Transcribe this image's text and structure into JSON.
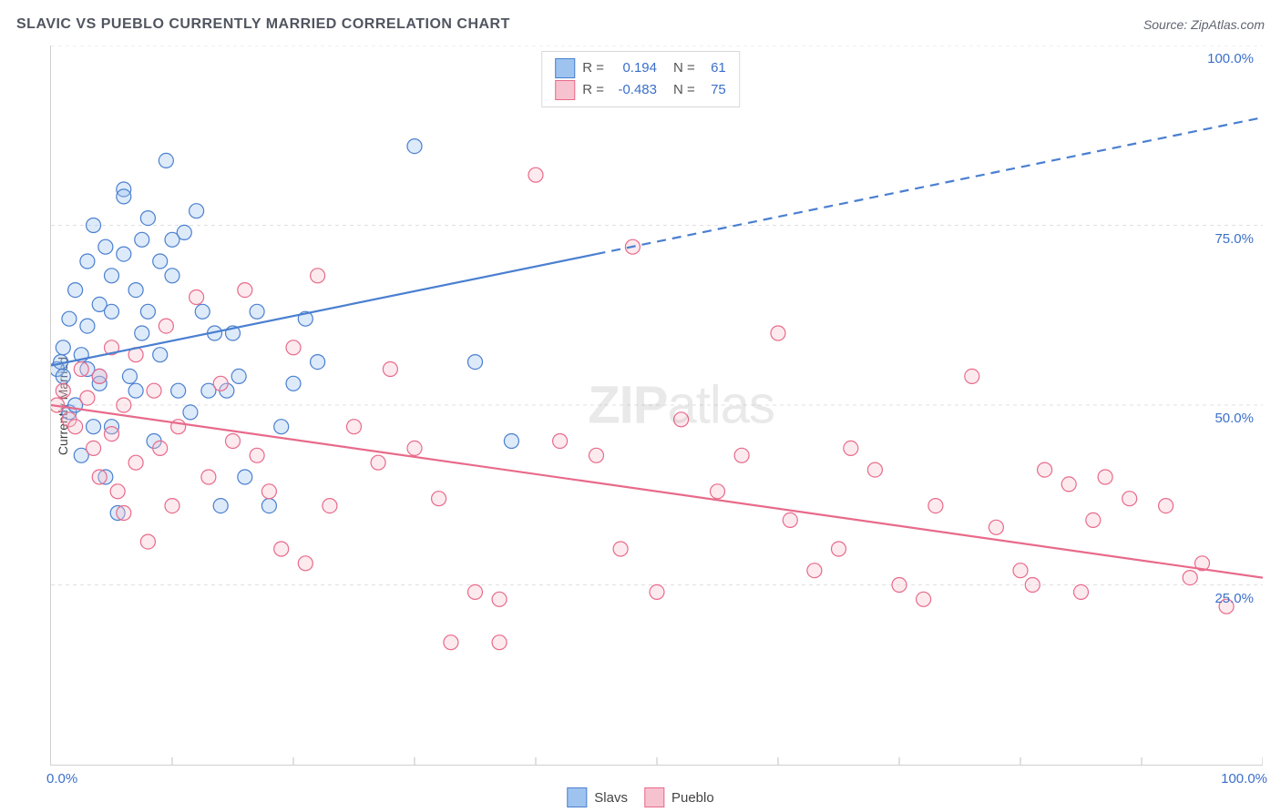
{
  "title": "SLAVIC VS PUEBLO CURRENTLY MARRIED CORRELATION CHART",
  "source": "Source: ZipAtlas.com",
  "watermark_a": "ZIP",
  "watermark_b": "atlas",
  "y_axis_label": "Currently Married",
  "chart": {
    "type": "scatter",
    "xlim": [
      0,
      100
    ],
    "ylim": [
      0,
      100
    ],
    "x_grid_pct": [
      10,
      20,
      30,
      40,
      50,
      60,
      70,
      80,
      90,
      100
    ],
    "y_axis_ticks": [
      {
        "value": 25,
        "label": "25.0%"
      },
      {
        "value": 50,
        "label": "50.0%"
      },
      {
        "value": 75,
        "label": "75.0%"
      },
      {
        "value": 100,
        "label": "100.0%"
      }
    ],
    "x_axis_end_left": "0.0%",
    "x_axis_end_right": "100.0%",
    "background_color": "#ffffff",
    "grid_color": "#e0e0e0",
    "grid_dash": "4,4",
    "marker_radius": 8,
    "marker_fill_opacity": 0.35,
    "marker_stroke_width": 1.2,
    "series": [
      {
        "key": "slavs",
        "name": "Slavs",
        "color_fill": "#9ec3ef",
        "color_stroke": "#4a7fd0",
        "stats": {
          "R_label": "R =",
          "R": "0.194",
          "N_label": "N =",
          "N": "61"
        },
        "trend": {
          "solid": {
            "x1": 0,
            "y1": 55.5,
            "x2": 45,
            "y2": 71
          },
          "dash": {
            "x1": 45,
            "y1": 71,
            "x2": 100,
            "y2": 90
          },
          "stroke_width": 2.2
        },
        "points": [
          [
            0.5,
            55
          ],
          [
            0.8,
            56
          ],
          [
            1,
            54
          ],
          [
            1,
            58
          ],
          [
            1.5,
            49
          ],
          [
            1.5,
            62
          ],
          [
            2,
            66
          ],
          [
            2,
            50
          ],
          [
            2.5,
            57
          ],
          [
            2.5,
            43
          ],
          [
            3,
            70
          ],
          [
            3,
            61
          ],
          [
            3,
            55
          ],
          [
            3.5,
            47
          ],
          [
            3.5,
            75
          ],
          [
            4,
            54
          ],
          [
            4,
            53
          ],
          [
            4,
            64
          ],
          [
            4.5,
            72
          ],
          [
            4.5,
            40
          ],
          [
            5,
            68
          ],
          [
            5,
            63
          ],
          [
            5,
            47
          ],
          [
            5.5,
            35
          ],
          [
            6,
            80
          ],
          [
            6,
            71
          ],
          [
            6,
            79
          ],
          [
            6.5,
            54
          ],
          [
            7,
            52
          ],
          [
            7,
            66
          ],
          [
            7.5,
            73
          ],
          [
            7.5,
            60
          ],
          [
            8,
            63
          ],
          [
            8,
            76
          ],
          [
            8.5,
            45
          ],
          [
            9,
            70
          ],
          [
            9,
            57
          ],
          [
            9.5,
            84
          ],
          [
            10,
            73
          ],
          [
            10,
            68
          ],
          [
            10.5,
            52
          ],
          [
            11,
            74
          ],
          [
            11.5,
            49
          ],
          [
            12,
            77
          ],
          [
            12.5,
            63
          ],
          [
            13,
            52
          ],
          [
            13.5,
            60
          ],
          [
            14,
            36
          ],
          [
            14.5,
            52
          ],
          [
            15,
            60
          ],
          [
            15.5,
            54
          ],
          [
            16,
            40
          ],
          [
            17,
            63
          ],
          [
            18,
            36
          ],
          [
            19,
            47
          ],
          [
            20,
            53
          ],
          [
            21,
            62
          ],
          [
            22,
            56
          ],
          [
            30,
            86
          ],
          [
            35,
            56
          ],
          [
            38,
            45
          ]
        ]
      },
      {
        "key": "pueblo",
        "name": "Pueblo",
        "color_fill": "#f6c2cf",
        "color_stroke": "#e86a8a",
        "stats": {
          "R_label": "R =",
          "R": "-0.483",
          "N_label": "N =",
          "N": "75"
        },
        "trend": {
          "solid": {
            "x1": 0,
            "y1": 50,
            "x2": 100,
            "y2": 26
          },
          "dash": null,
          "stroke_width": 2.2
        },
        "points": [
          [
            0.5,
            50
          ],
          [
            1,
            52
          ],
          [
            1.5,
            48
          ],
          [
            2,
            47
          ],
          [
            2.5,
            55
          ],
          [
            3,
            51
          ],
          [
            3.5,
            44
          ],
          [
            4,
            54
          ],
          [
            4,
            40
          ],
          [
            5,
            46
          ],
          [
            5,
            58
          ],
          [
            5.5,
            38
          ],
          [
            6,
            35
          ],
          [
            6,
            50
          ],
          [
            7,
            42
          ],
          [
            7,
            57
          ],
          [
            8,
            31
          ],
          [
            8.5,
            52
          ],
          [
            9,
            44
          ],
          [
            9.5,
            61
          ],
          [
            10,
            36
          ],
          [
            10.5,
            47
          ],
          [
            12,
            65
          ],
          [
            13,
            40
          ],
          [
            14,
            53
          ],
          [
            15,
            45
          ],
          [
            16,
            66
          ],
          [
            17,
            43
          ],
          [
            18,
            38
          ],
          [
            19,
            30
          ],
          [
            20,
            58
          ],
          [
            21,
            28
          ],
          [
            22,
            68
          ],
          [
            23,
            36
          ],
          [
            25,
            47
          ],
          [
            27,
            42
          ],
          [
            28,
            55
          ],
          [
            30,
            44
          ],
          [
            32,
            37
          ],
          [
            33,
            17
          ],
          [
            35,
            24
          ],
          [
            37,
            23
          ],
          [
            37,
            17
          ],
          [
            40,
            82
          ],
          [
            42,
            45
          ],
          [
            45,
            43
          ],
          [
            47,
            30
          ],
          [
            48,
            72
          ],
          [
            50,
            24
          ],
          [
            52,
            48
          ],
          [
            55,
            38
          ],
          [
            57,
            43
          ],
          [
            60,
            60
          ],
          [
            61,
            34
          ],
          [
            63,
            27
          ],
          [
            65,
            30
          ],
          [
            66,
            44
          ],
          [
            68,
            41
          ],
          [
            70,
            25
          ],
          [
            72,
            23
          ],
          [
            73,
            36
          ],
          [
            76,
            54
          ],
          [
            78,
            33
          ],
          [
            80,
            27
          ],
          [
            81,
            25
          ],
          [
            82,
            41
          ],
          [
            84,
            39
          ],
          [
            85,
            24
          ],
          [
            86,
            34
          ],
          [
            87,
            40
          ],
          [
            89,
            37
          ],
          [
            92,
            36
          ],
          [
            94,
            26
          ],
          [
            95,
            28
          ],
          [
            97,
            22
          ]
        ]
      }
    ]
  }
}
